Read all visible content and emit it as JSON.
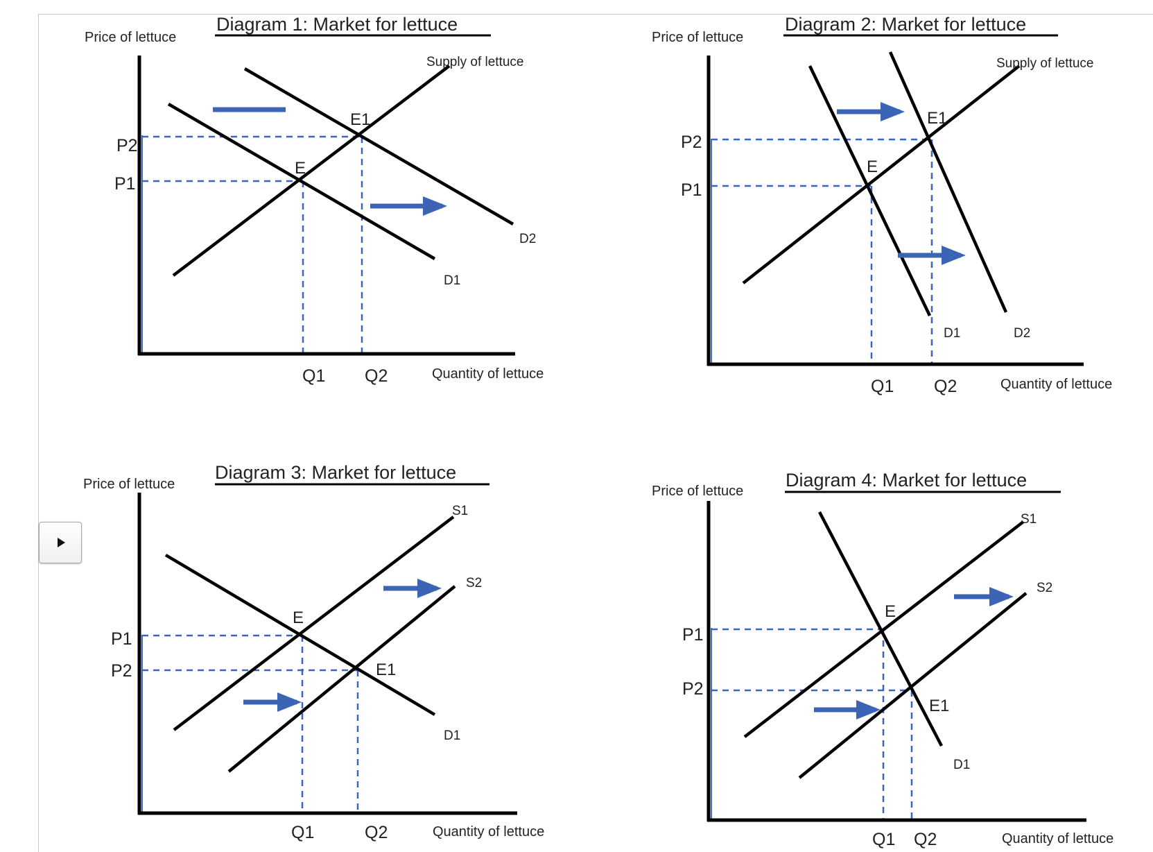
{
  "diagrams": [
    {
      "title": "Diagram 1:  Market for lettuce",
      "y_axis_label": "Price of lettuce",
      "x_axis_label": "Quantity of lettuce",
      "price_ticks": [
        "P2",
        "P1"
      ],
      "quantity_ticks": [
        "Q1",
        "Q2"
      ],
      "points": [
        "E",
        "E1"
      ],
      "curves": [
        "Supply of lettuce",
        "D1",
        "D2"
      ]
    },
    {
      "title": "Diagram 2:  Market for lettuce",
      "y_axis_label": "Price of lettuce",
      "x_axis_label": "Quantity of lettuce",
      "price_ticks": [
        "P2",
        "P1"
      ],
      "quantity_ticks": [
        "Q1",
        "Q2"
      ],
      "points": [
        "E",
        "E1"
      ],
      "curves": [
        "Supply of lettuce",
        "D1",
        "D2"
      ]
    },
    {
      "title": "Diagram 3:  Market for lettuce",
      "y_axis_label": "Price of lettuce",
      "x_axis_label": "Quantity of lettuce",
      "price_ticks": [
        "P1",
        "P2"
      ],
      "quantity_ticks": [
        "Q1",
        "Q2"
      ],
      "points": [
        "E",
        "E1"
      ],
      "curves": [
        "S1",
        "S2",
        "D1"
      ]
    },
    {
      "title": "Diagram 4:  Market for lettuce",
      "y_axis_label": "Price of lettuce",
      "x_axis_label": "Quantity of lettuce",
      "price_ticks": [
        "P1",
        "P2"
      ],
      "quantity_ticks": [
        "Q1",
        "Q2"
      ],
      "points": [
        "E",
        "E1"
      ],
      "curves": [
        "S1",
        "S2",
        "D1"
      ]
    }
  ],
  "colors": {
    "curve": "#000000",
    "guide": "#3a64c4",
    "arrow": "#3c64b4"
  },
  "icons": {
    "play_button": "play-icon"
  }
}
